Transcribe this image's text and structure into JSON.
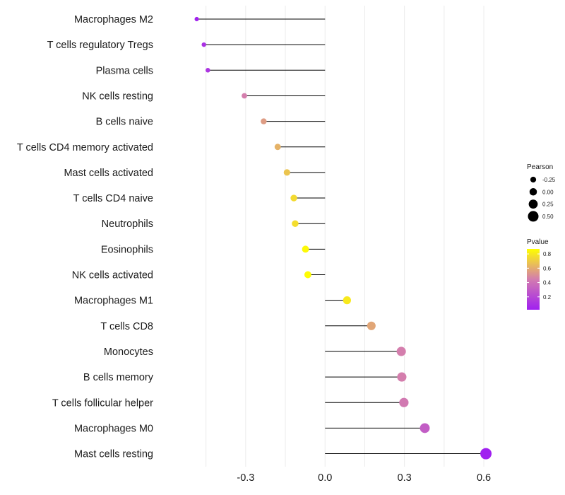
{
  "chart_data": {
    "type": "lollipop",
    "categories": [
      "Macrophages M2",
      "T cells regulatory  Tregs",
      "Plasma cells",
      "NK cells resting",
      "B cells naive",
      "T cells CD4 memory activated",
      "Mast cells activated",
      "T cells CD4 naive",
      "Neutrophils",
      "Eosinophils",
      "NK cells activated",
      "Macrophages M1",
      "T cells CD8",
      "Monocytes",
      "B cells memory",
      "T cells follicular helper",
      "Macrophages M0",
      "Mast cells resting"
    ],
    "values": [
      -0.485,
      -0.458,
      -0.443,
      -0.305,
      -0.232,
      -0.179,
      -0.144,
      -0.118,
      -0.113,
      -0.074,
      -0.065,
      0.083,
      0.175,
      0.288,
      0.29,
      0.298,
      0.377,
      0.608
    ],
    "pvalues": [
      0.03,
      0.1,
      0.12,
      0.45,
      0.55,
      0.62,
      0.68,
      0.75,
      0.76,
      0.85,
      0.86,
      0.8,
      0.58,
      0.45,
      0.45,
      0.43,
      0.3,
      0.02
    ],
    "xlim": [
      -0.62,
      0.72
    ],
    "x_ticks": [
      -0.3,
      0.0,
      0.3,
      0.6
    ],
    "x_tick_labels": [
      "-0.3",
      "0.0",
      "0.3",
      "0.6"
    ],
    "xlabel": "",
    "ylabel": "",
    "grid": "vertical",
    "legend_placement": "right",
    "size_legend": {
      "title": "Pearson",
      "values": [
        -0.25,
        0.0,
        0.25,
        0.5
      ],
      "labels": [
        "-0.25",
        "0.00",
        "0.25",
        "0.50"
      ]
    },
    "color_legend": {
      "title": "Pvalue",
      "range": [
        0.02,
        0.87
      ],
      "ticks": [
        0.2,
        0.4,
        0.6,
        0.8
      ],
      "labels": [
        "0.2",
        "0.4",
        "0.6",
        "0.8"
      ],
      "low_color": "#a020f0",
      "mid_color": "#d37caf",
      "high_color": "#ffff00"
    },
    "stem_color": "#000000",
    "grid_color": "#ebebeb"
  }
}
